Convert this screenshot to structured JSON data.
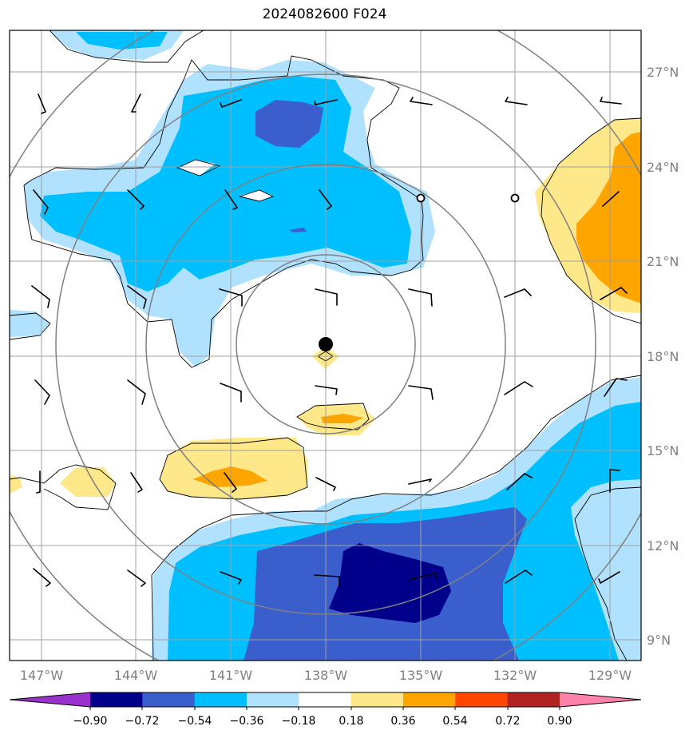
{
  "title": "2024082600 F024",
  "longitude_labels": [
    "147°W",
    "144°W",
    "141°W",
    "138°W",
    "135°W",
    "132°W",
    "129°W"
  ],
  "latitude_labels": [
    "27°N",
    "24°N",
    "21°N",
    "18°N",
    "15°N",
    "12°N",
    "9°N"
  ],
  "colorbar": {
    "labels": [
      "−0.90",
      "−0.72",
      "−0.54",
      "−0.36",
      "−0.18",
      "0.18",
      "0.36",
      "0.54",
      "0.72",
      "0.90"
    ],
    "colors": [
      "#9932cc",
      "#00008b",
      "#3a5fcd",
      "#00bfff",
      "#b0e2ff",
      "#ffffff",
      "#ffe88a",
      "#ffa500",
      "#ff4500",
      "#b22222",
      "#ff82ab"
    ]
  },
  "storm_center": {
    "lon": -138.0,
    "lat": 18.3
  },
  "range_ring_colors": {
    "ring": "#808080",
    "grid": "#a0a0a0"
  },
  "contour_colors": {
    "strong_negative": "#00008b",
    "negative": "#3a5fcd",
    "moderate_negative": "#00bfff",
    "weak_negative": "#b0e2ff",
    "weak_positive": "#ffe88a",
    "positive": "#ffa500"
  }
}
